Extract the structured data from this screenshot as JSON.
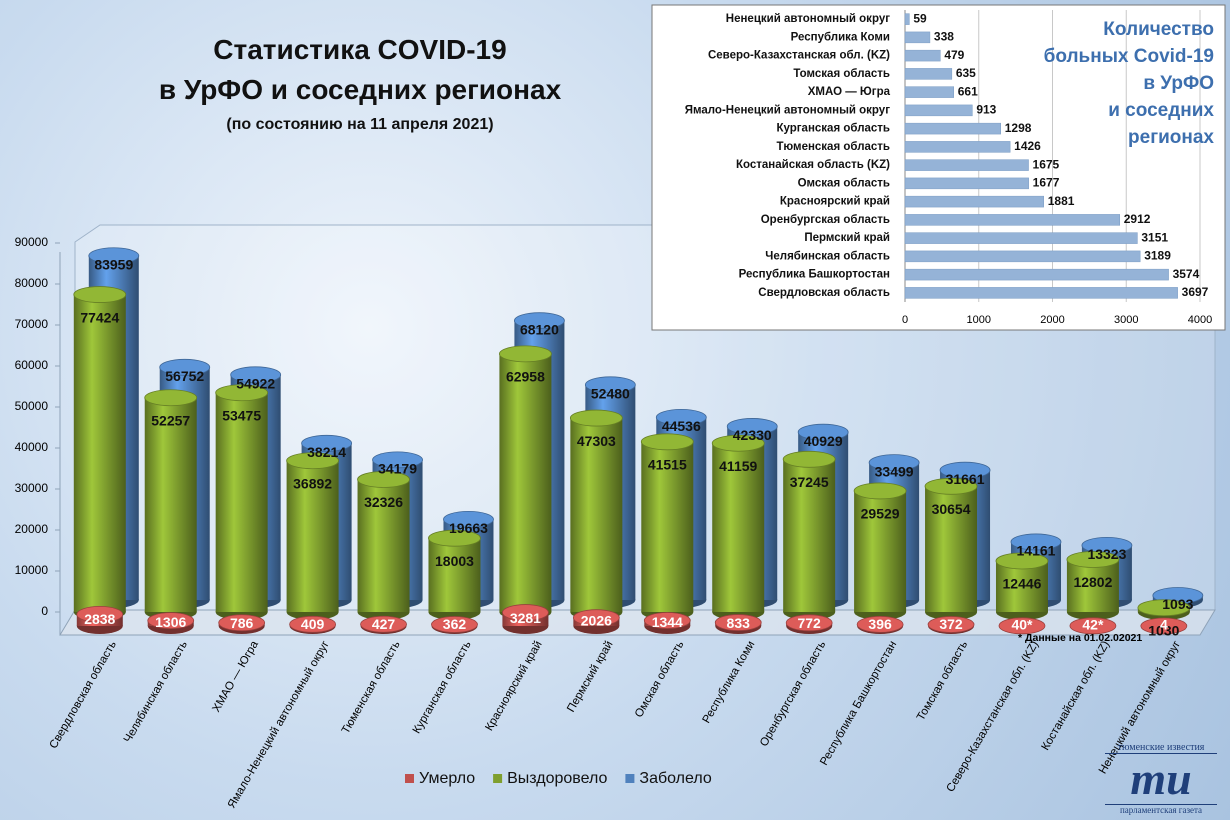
{
  "chart_data": [
    {
      "type": "bar",
      "title": [
        "Статистика COVID-19",
        "в УрФО и соседних регионах"
      ],
      "subtitle": "(по состоянию на 11 апреля 2021)",
      "note": "* Данные на 01.02.02021",
      "categories": [
        "Свердловская область",
        "Челябинская область",
        "ХМАО — Югра",
        "Ямало-Ненецкий автономный округ",
        "Тюменская область",
        "Курганская область",
        "Красноярский край",
        "Пермский край",
        "Омская область",
        "Республика Коми",
        "Оренбургская область",
        "Республика Башкортостан",
        "Томская область",
        "Северо-Казахстанская обл. (KZ)",
        "Костанайская обл. (KZ)",
        "Ненецкий автономный округ"
      ],
      "series": [
        {
          "name": "Умерло",
          "color": "#c0504d",
          "values": [
            2838,
            1306,
            786,
            409,
            427,
            362,
            3281,
            2026,
            1344,
            833,
            772,
            396,
            372,
            40,
            42,
            4
          ],
          "value_labels": [
            "2838",
            "1306",
            "786",
            "409",
            "427",
            "362",
            "3281",
            "2026",
            "1344",
            "833",
            "772",
            "396",
            "372",
            "40*",
            "42*",
            "4"
          ]
        },
        {
          "name": "Выздоровело",
          "color": "#7f9f2e",
          "values": [
            77424,
            52257,
            53475,
            36892,
            32326,
            18003,
            62958,
            47303,
            41515,
            41159,
            37245,
            29529,
            30654,
            12446,
            12802,
            1030
          ]
        },
        {
          "name": "Заболело",
          "color": "#4f81bd",
          "values": [
            83959,
            56752,
            54922,
            38214,
            34179,
            19663,
            68120,
            52480,
            44536,
            42330,
            40929,
            33499,
            31661,
            14161,
            13323,
            1093
          ]
        }
      ],
      "ylim": [
        0,
        90000
      ],
      "yticks": [
        0,
        10000,
        20000,
        30000,
        40000,
        50000,
        60000,
        70000,
        80000,
        90000
      ],
      "grid": false
    },
    {
      "type": "barh",
      "title": [
        "Количество",
        "больных Covid-19",
        "в УрФО",
        "и соседних",
        "регионах"
      ],
      "categories": [
        "Ненецкий автономный округ",
        "Республика Коми",
        "Северо-Казахстанская обл. (KZ)",
        "Томская область",
        "ХМАО — Югра",
        "Ямало-Ненецкий автономный округ",
        "Курганская область",
        "Тюменская область",
        "Костанайская область (KZ)",
        "Омская область",
        "Красноярский край",
        "Оренбургская область",
        "Пермский край",
        "Челябинская область",
        "Республика Башкортостан",
        "Свердловская область"
      ],
      "values": [
        59,
        338,
        479,
        635,
        661,
        913,
        1298,
        1426,
        1675,
        1677,
        1881,
        2912,
        3151,
        3189,
        3574,
        3697
      ],
      "color": "#95b3d7",
      "xlim": [
        0,
        4000
      ],
      "xticks": [
        0,
        1000,
        2000,
        3000,
        4000
      ],
      "grid": true
    }
  ],
  "logo": {
    "top": "тюменские известия",
    "mark": "ти",
    "bottom": "парламентская газета"
  }
}
